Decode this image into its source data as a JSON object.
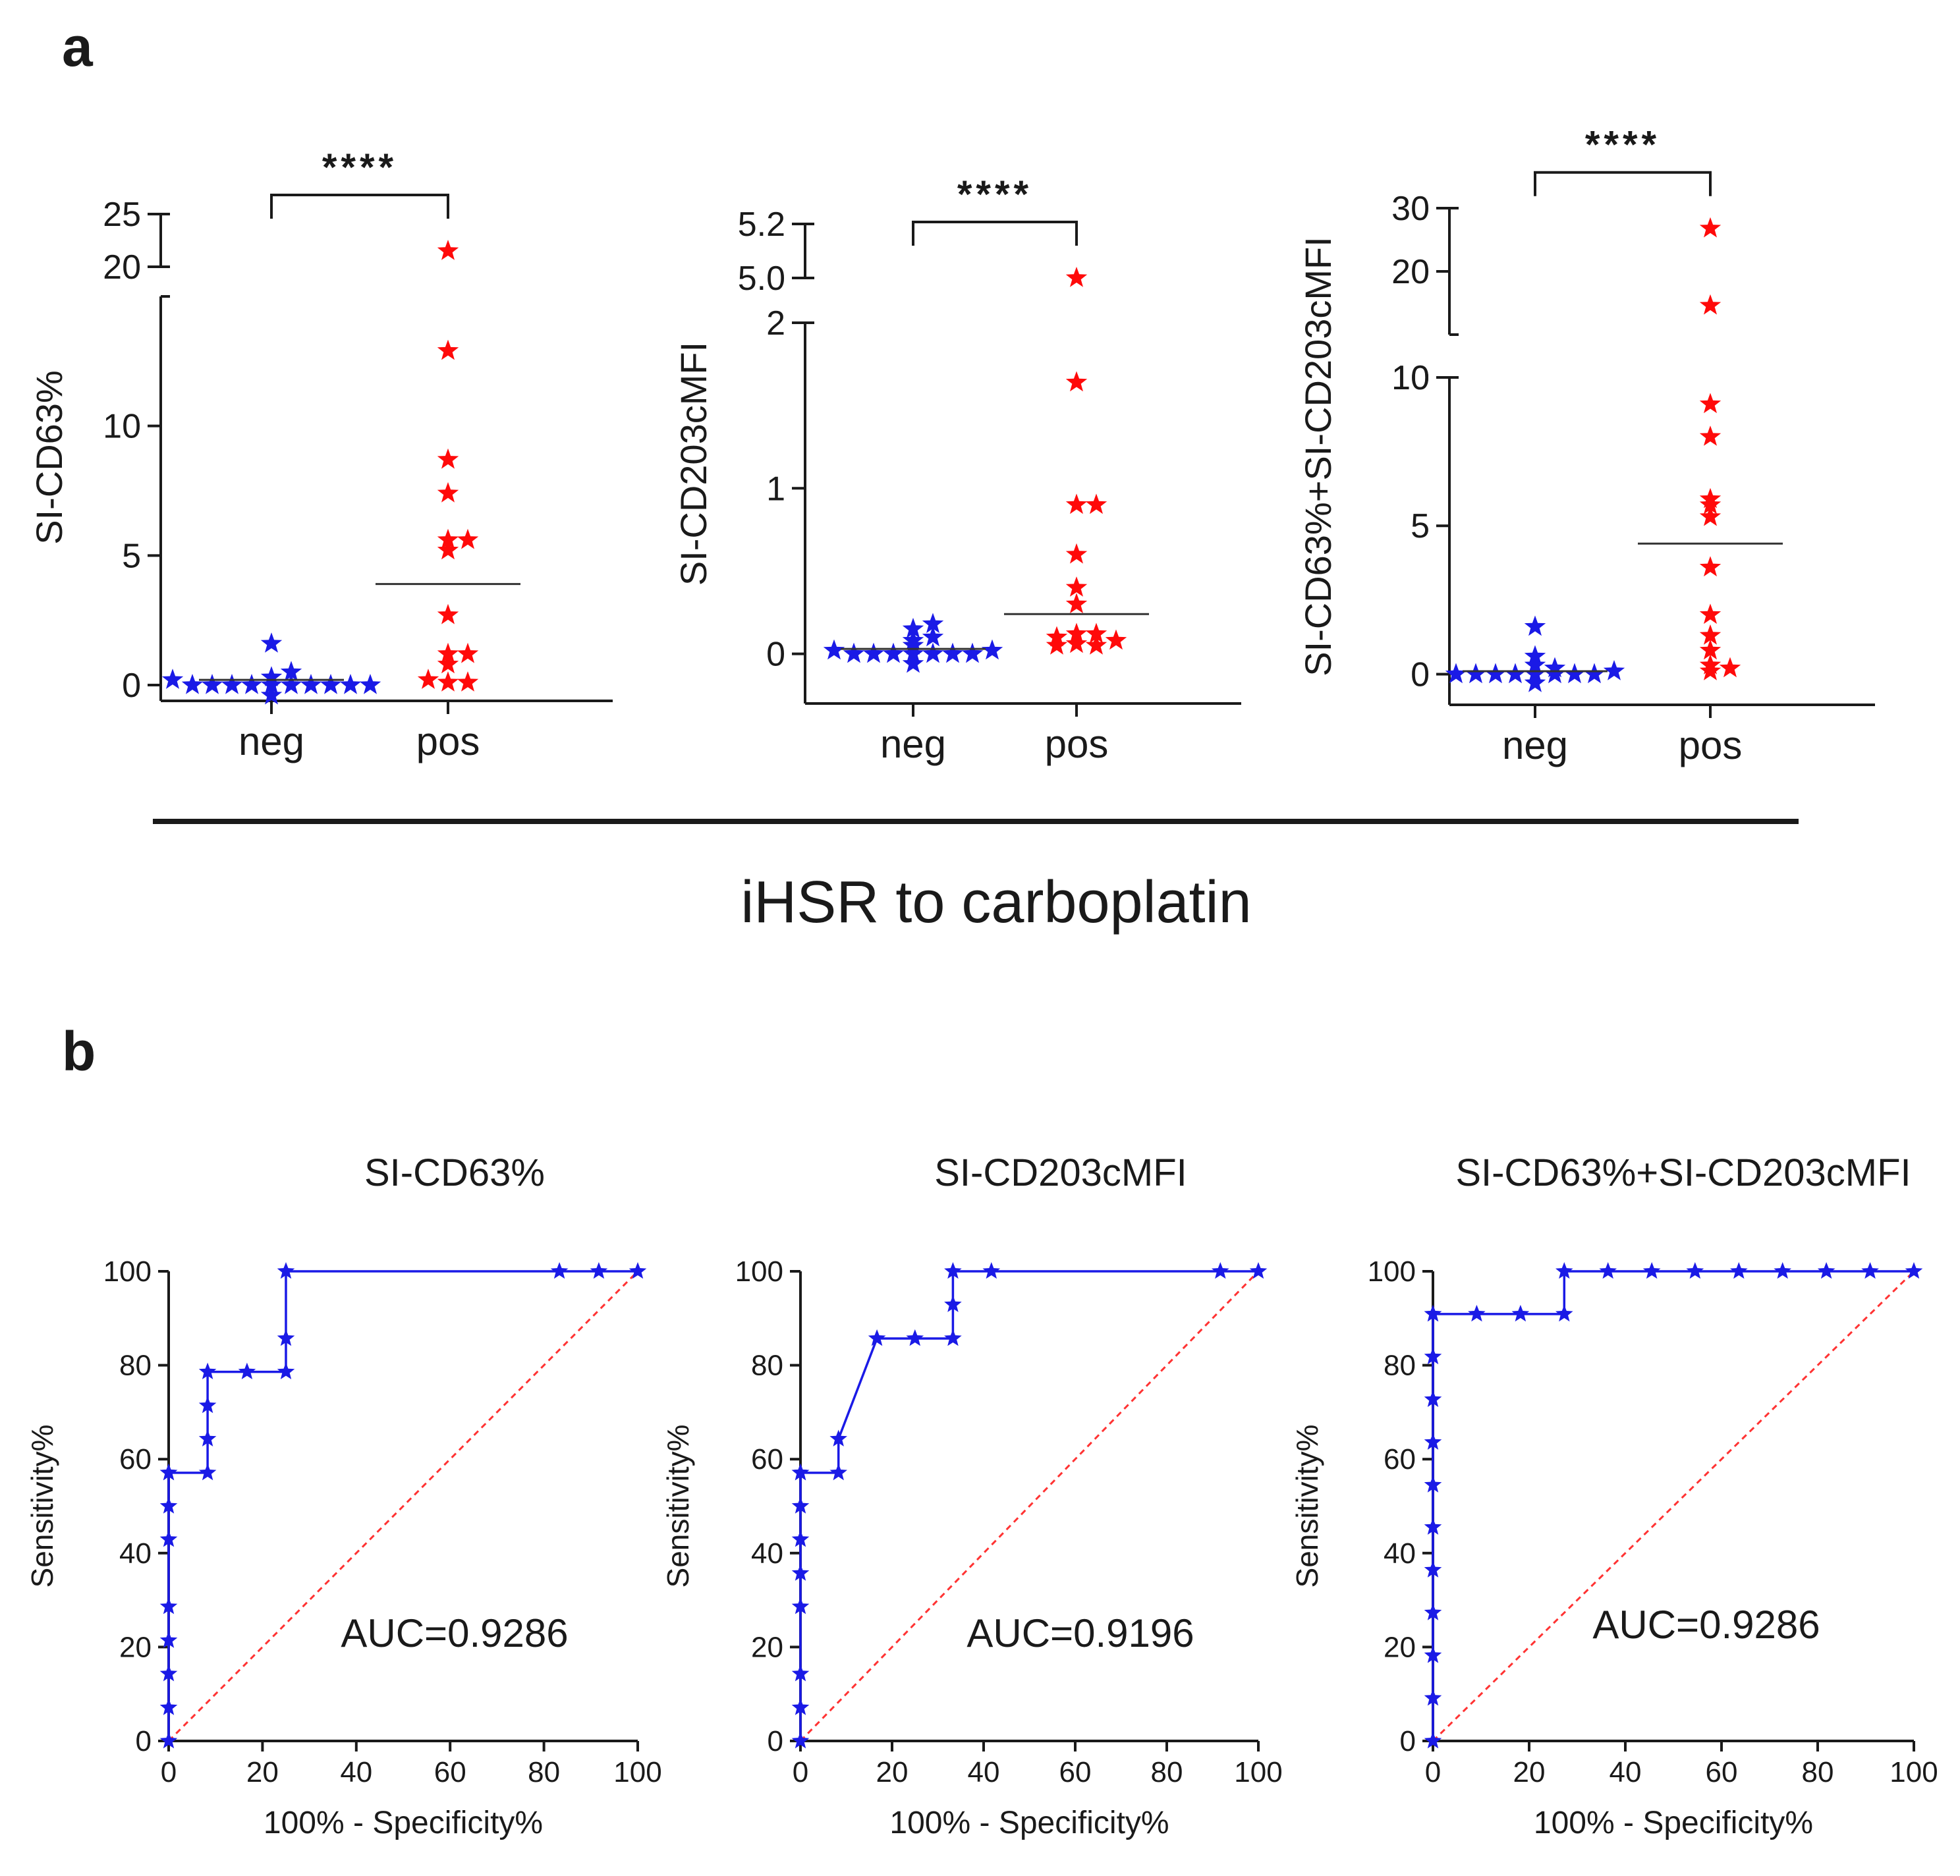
{
  "panel_a": {
    "letter": "a",
    "caption": "iHSR to carboplatin"
  },
  "panel_b": {
    "letter": "b"
  },
  "colors": {
    "neg": "#1a1ae6",
    "pos": "#ff0a0a",
    "roc_line": "#1a1ae6",
    "reference": "#ff3333",
    "axis": "#1a1a1a"
  },
  "chart_data": [
    {
      "type": "scatter",
      "subtype": "dot-plot",
      "ylabel": "SI-CD63%",
      "categories": [
        "neg",
        "pos"
      ],
      "significance": "****",
      "y_segments": [
        {
          "range": [
            0,
            15
          ],
          "ticks": [
            0,
            5,
            10
          ],
          "tick_labels": [
            "0",
            "5",
            "10"
          ]
        },
        {
          "range": [
            20,
            25
          ],
          "ticks": [
            20,
            25
          ],
          "tick_labels": [
            "20",
            "25"
          ]
        }
      ],
      "series": [
        {
          "name": "neg",
          "values": [
            0,
            0,
            0,
            0,
            0,
            0,
            0,
            0,
            0,
            0,
            0.2,
            0.3,
            0.5,
            1.6,
            -0.4
          ],
          "mean": 0.2
        },
        {
          "name": "pos",
          "values": [
            21.5,
            12.9,
            8.7,
            7.4,
            5.6,
            5.6,
            5.2,
            2.7,
            1.2,
            1.2,
            0.8,
            0.1,
            0.1,
            0.2
          ],
          "mean": 3.9
        }
      ]
    },
    {
      "type": "scatter",
      "subtype": "dot-plot",
      "ylabel": "SI-CD203cMFI",
      "categories": [
        "neg",
        "pos"
      ],
      "significance": "****",
      "y_segments": [
        {
          "range": [
            -0.3,
            2.0
          ],
          "ticks": [
            0,
            1,
            2
          ],
          "tick_labels": [
            "0",
            "1",
            "2"
          ]
        },
        {
          "range": [
            5.0,
            5.2
          ],
          "ticks": [
            5.0,
            5.2
          ],
          "tick_labels": [
            "5.0",
            "5.2"
          ]
        }
      ],
      "series": [
        {
          "name": "neg",
          "values": [
            0,
            0,
            0,
            0,
            0,
            0,
            0,
            0.02,
            0.05,
            0.08,
            0.1,
            0.15,
            0.02,
            0.18,
            -0.06
          ],
          "mean": 0.03
        },
        {
          "name": "pos",
          "values": [
            5.0,
            1.64,
            0.9,
            0.9,
            0.6,
            0.4,
            0.3,
            0.12,
            0.12,
            0.1,
            0.08,
            0.06,
            0.05,
            0.05
          ],
          "mean": 0.24
        }
      ]
    },
    {
      "type": "scatter",
      "subtype": "dot-plot",
      "ylabel": "SI-CD63%+SI-CD203cMFI",
      "categories": [
        "neg",
        "pos"
      ],
      "significance": "****",
      "y_segments": [
        {
          "range": [
            -0.5,
            10
          ],
          "ticks": [
            0,
            5,
            10
          ],
          "tick_labels": [
            "0",
            "5",
            "10"
          ]
        },
        {
          "range": [
            10,
            30
          ],
          "ticks": [
            10,
            20,
            30
          ],
          "tick_labels": [
            "10",
            "20",
            "30"
          ]
        }
      ],
      "series": [
        {
          "name": "neg",
          "values": [
            0,
            0,
            0,
            0,
            0,
            0,
            0,
            0.1,
            0.3,
            0.6,
            1.6,
            -0.3,
            0,
            0.2
          ],
          "mean": 0.1
        },
        {
          "name": "pos",
          "values": [
            26.8,
            14.6,
            9.1,
            8.0,
            5.9,
            5.7,
            5.3,
            3.6,
            2.0,
            1.3,
            0.8,
            0.3,
            0.2,
            0.1
          ],
          "mean": 4.4
        }
      ]
    },
    {
      "type": "line",
      "subtype": "roc",
      "title": "SI-CD63%",
      "xlabel": "100% - Specificity%",
      "ylabel": "Sensitivity%",
      "xlim": [
        0,
        100
      ],
      "ylim": [
        0,
        100
      ],
      "ticks": [
        0,
        20,
        40,
        60,
        80,
        100
      ],
      "auc_label": "AUC=0.9286",
      "x": [
        0,
        0,
        0,
        0,
        0,
        0,
        0,
        0,
        0,
        8.3,
        8.3,
        8.3,
        8.3,
        16.7,
        25,
        25,
        25,
        83.3,
        91.7,
        100
      ],
      "y": [
        0,
        7.1,
        14.3,
        21.4,
        28.6,
        42.9,
        50,
        57.1,
        57.1,
        57.1,
        64.3,
        71.4,
        78.6,
        78.6,
        78.6,
        85.7,
        100,
        100,
        100,
        100
      ]
    },
    {
      "type": "line",
      "subtype": "roc",
      "title": "SI-CD203cMFI",
      "xlabel": "100% - Specificity%",
      "ylabel": "Sensitivity%",
      "xlim": [
        0,
        100
      ],
      "ylim": [
        0,
        100
      ],
      "ticks": [
        0,
        20,
        40,
        60,
        80,
        100
      ],
      "auc_label": "AUC=0.9196",
      "x": [
        0,
        0,
        0,
        0,
        0,
        0,
        0,
        0,
        0,
        0,
        8.3,
        8.3,
        16.7,
        25,
        33.3,
        33.3,
        33.3,
        41.7,
        91.7,
        100
      ],
      "y": [
        0,
        7.1,
        14.3,
        28.6,
        35.7,
        42.9,
        50,
        57.1,
        57.1,
        57.1,
        57.1,
        64.3,
        85.7,
        85.7,
        85.7,
        92.9,
        100,
        100,
        100,
        100
      ]
    },
    {
      "type": "line",
      "subtype": "roc",
      "title": "SI-CD63%+SI-CD203cMFI",
      "xlabel": "100% - Specificity%",
      "ylabel": "Sensitivity%",
      "xlim": [
        0,
        100
      ],
      "ylim": [
        0,
        100
      ],
      "ticks": [
        0,
        20,
        40,
        60,
        80,
        100
      ],
      "auc_label": "AUC=0.9286",
      "x": [
        0,
        0,
        0,
        0,
        0,
        0,
        0,
        0,
        0,
        0,
        0,
        0,
        9.1,
        18.2,
        27.3,
        27.3,
        36.4,
        45.5,
        54.5,
        63.6,
        72.7,
        81.8,
        90.9,
        100
      ],
      "y": [
        0,
        9.1,
        18.2,
        27.3,
        36.4,
        45.5,
        54.5,
        63.6,
        72.7,
        81.8,
        90.9,
        90.9,
        90.9,
        90.9,
        90.9,
        100,
        100,
        100,
        100,
        100,
        100,
        100,
        100,
        100
      ]
    }
  ]
}
